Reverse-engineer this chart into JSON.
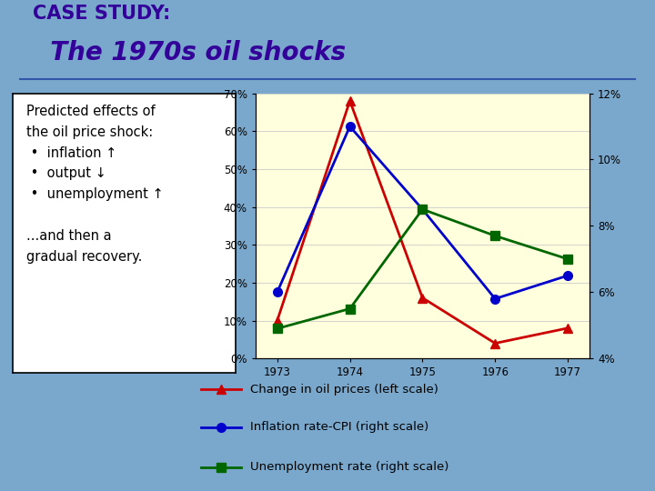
{
  "title_line1": "CASE STUDY:",
  "title_line2": "  The 1970s oil shocks",
  "years": [
    1973,
    1974,
    1975,
    1976,
    1977
  ],
  "oil_prices": [
    0.1,
    0.68,
    0.16,
    0.04,
    0.08
  ],
  "inflation_cpi": [
    0.06,
    0.11,
    0.085,
    0.058,
    0.065
  ],
  "unemployment": [
    0.049,
    0.055,
    0.085,
    0.077,
    0.07
  ],
  "left_ylim": [
    0.0,
    0.7
  ],
  "left_yticks": [
    0.0,
    0.1,
    0.2,
    0.3,
    0.4,
    0.5,
    0.6,
    0.7
  ],
  "left_yticklabels": [
    "0%",
    "10%",
    "20%",
    "30%",
    "40%",
    "50%",
    "60%",
    "70%"
  ],
  "right_ylim": [
    0.04,
    0.12
  ],
  "right_yticks": [
    0.04,
    0.06,
    0.08,
    0.1,
    0.12
  ],
  "right_yticklabels": [
    "4%",
    "6%",
    "8%",
    "10%",
    "12%"
  ],
  "oil_color": "#cc0000",
  "inflation_color": "#0000cc",
  "unemployment_color": "#006600",
  "bg_chart": "#ffffdd",
  "title_color1": "#330099",
  "title_color2": "#330099",
  "legend_oil": "Change in oil prices (left scale)",
  "legend_inflation": "Inflation rate-CPI (right scale)",
  "legend_unemployment": "Unemployment rate (right scale)",
  "textbox_line1": "Predicted effects of",
  "textbox_line2": "the oil price shock:",
  "textbox_line3": " •  inflation ↑",
  "textbox_line4": " •  output ↓",
  "textbox_line5": " •  unemployment ↑",
  "textbox_line6": "",
  "textbox_line7": "...and then a",
  "textbox_line8": "gradual recovery.",
  "slide_bg": "#7aa7cc"
}
